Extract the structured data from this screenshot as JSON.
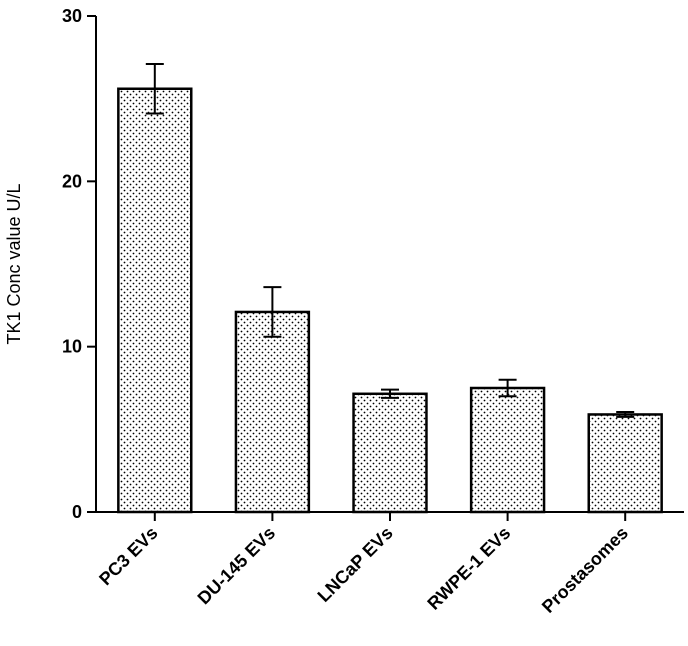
{
  "chart_data": {
    "type": "bar",
    "title": "",
    "xlabel": "",
    "ylabel": "TK1 Conc value U/L",
    "categories": [
      "PC3 EVs",
      "DU-145 EVs",
      "LNCaP EVs",
      "RWPE-1 EVs",
      "Prostasomes"
    ],
    "series": [
      {
        "values": [
          25.6,
          12.1,
          7.15,
          7.5,
          5.9
        ],
        "error": [
          1.5,
          1.5,
          0.25,
          0.5,
          0.15
        ]
      }
    ],
    "ylim": [
      0,
      30
    ],
    "yticks": [
      0,
      10,
      20,
      30
    ],
    "grid": false,
    "legend": "none",
    "bar_fill": "#ffffff",
    "bar_pattern": "dotted",
    "bar_edge_color": "#000000"
  }
}
